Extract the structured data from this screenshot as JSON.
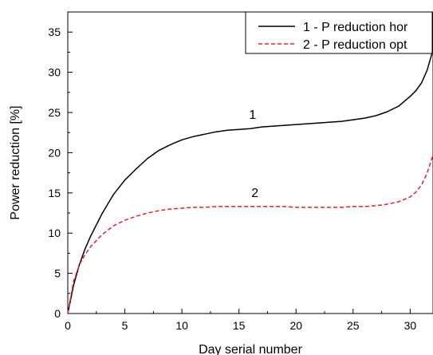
{
  "chart_data": {
    "type": "line",
    "xlabel": "Day serial number",
    "ylabel": "Power reduction [%]",
    "xlim": [
      0,
      32
    ],
    "ylim": [
      0,
      37.5
    ],
    "x_ticks": [
      0,
      5,
      10,
      15,
      20,
      25,
      30
    ],
    "y_ticks": [
      0,
      5,
      10,
      15,
      20,
      25,
      30,
      35
    ],
    "grid": false,
    "legend_position": "top-right",
    "series": [
      {
        "name": "1 - P reduction hor",
        "color": "#000000",
        "dash": "solid",
        "x": [
          0,
          0.5,
          1,
          1.5,
          2,
          3,
          4,
          5,
          6,
          7,
          8,
          9,
          10,
          11,
          12,
          13,
          14,
          15,
          16,
          17,
          18,
          19,
          20,
          21,
          22,
          23,
          24,
          25,
          26,
          27,
          28,
          29,
          30,
          30.5,
          31,
          31.5,
          32
        ],
        "values": [
          0,
          3.5,
          6.0,
          8.0,
          9.6,
          12.4,
          14.8,
          16.6,
          18.0,
          19.3,
          20.3,
          21.0,
          21.6,
          22.0,
          22.3,
          22.6,
          22.8,
          22.9,
          23.0,
          23.2,
          23.3,
          23.4,
          23.5,
          23.6,
          23.7,
          23.8,
          23.9,
          24.1,
          24.3,
          24.6,
          25.1,
          25.8,
          27.0,
          27.7,
          28.7,
          30.3,
          32.8
        ]
      },
      {
        "name": "2 - P reduction opt",
        "color": "#e8202a",
        "dash": "dashed",
        "x": [
          0,
          0.5,
          1,
          1.5,
          2,
          3,
          4,
          5,
          6,
          7,
          8,
          9,
          10,
          11,
          12,
          13,
          14,
          15,
          16,
          17,
          18,
          19,
          20,
          21,
          22,
          23,
          24,
          25,
          26,
          27,
          28,
          29,
          30,
          30.5,
          31,
          31.5,
          32
        ],
        "values": [
          0,
          4.0,
          6.0,
          7.3,
          8.3,
          9.8,
          10.9,
          11.6,
          12.1,
          12.5,
          12.8,
          13.0,
          13.1,
          13.2,
          13.2,
          13.3,
          13.3,
          13.3,
          13.3,
          13.3,
          13.3,
          13.3,
          13.2,
          13.2,
          13.2,
          13.2,
          13.2,
          13.3,
          13.3,
          13.4,
          13.6,
          13.9,
          14.5,
          15.1,
          16.0,
          17.5,
          19.7
        ]
      }
    ],
    "annotations": [
      {
        "text": "1",
        "x": 16.2,
        "y": 24.2
      },
      {
        "text": "2",
        "x": 16.4,
        "y": 14.5
      }
    ]
  }
}
